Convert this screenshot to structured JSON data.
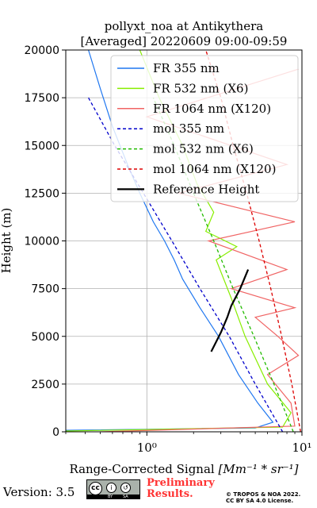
{
  "chart_data": {
    "type": "line",
    "title": "pollyxt_noa at Antikythera",
    "subtitle": "[Averaged] 20220609 09:00-09:59",
    "xlabel_prefix": "Range-Corrected Signal ",
    "xlabel_unit": "[Mm⁻¹ * sr⁻¹]",
    "ylabel": "Height (m)",
    "xscale": "log",
    "xlim": [
      0.3,
      10
    ],
    "ylim": [
      0,
      20000
    ],
    "xticks": [
      {
        "value": 1,
        "label": "10⁰"
      },
      {
        "value": 10,
        "label": "10¹"
      }
    ],
    "yticks": [
      0,
      2500,
      5000,
      7500,
      10000,
      12500,
      15000,
      17500,
      20000
    ],
    "grid": true,
    "legend_position": "top-right",
    "series": [
      {
        "name": "FR 355 nm",
        "color": "#1f77f0",
        "style": "solid",
        "x": [
          0.3,
          5.0,
          6.5,
          5.2,
          3.9,
          2.9,
          2.2,
          1.7,
          1.5,
          1.3,
          1.1,
          0.9,
          0.75,
          0.6,
          0.5,
          0.42
        ],
        "y": [
          80,
          200,
          500,
          1500,
          3000,
          5000,
          6500,
          8000,
          9000,
          10000,
          11000,
          12500,
          14000,
          16000,
          18000,
          20000
        ]
      },
      {
        "name": "FR 532 nm (X6)",
        "color": "#88ee00",
        "style": "solid",
        "x": [
          0.3,
          7.5,
          8.5,
          6.0,
          4.3,
          3.5,
          2.8,
          3.8,
          2.4,
          2.7,
          2.1,
          1.7,
          1.2,
          0.9
        ],
        "y": [
          40,
          250,
          1000,
          2500,
          5000,
          7000,
          9000,
          9700,
          10500,
          11500,
          13000,
          15000,
          17500,
          20000
        ]
      },
      {
        "name": "FR 1064 nm (X120)",
        "color": "#f06464",
        "style": "solid",
        "x": [
          0.5,
          9.0,
          8.5,
          6.0,
          9.5,
          7.0,
          5.0,
          9.0,
          3.5,
          8.0,
          2.5,
          9.0,
          1.6,
          8.0,
          1.0,
          9.5
        ],
        "y": [
          0,
          300,
          1500,
          3000,
          4000,
          5000,
          6000,
          6500,
          7500,
          8500,
          10000,
          11000,
          12500,
          14000,
          16500,
          19000
        ]
      },
      {
        "name": "mol 355 nm",
        "color": "#0000cc",
        "style": "dashed",
        "x": [
          7.5,
          5.0,
          3.4,
          2.2,
          1.45,
          0.95,
          0.62,
          0.42
        ],
        "y": [
          0,
          2500,
          5000,
          7500,
          10000,
          12500,
          15000,
          17500
        ]
      },
      {
        "name": "mol 532 nm (X6)",
        "color": "#22bb00",
        "style": "dashed",
        "x": [
          8.8,
          6.6,
          4.9,
          3.6,
          2.7,
          2.0,
          1.5,
          1.1
        ],
        "y": [
          0,
          2500,
          5000,
          7500,
          10000,
          12500,
          15000,
          17500
        ]
      },
      {
        "name": "mol 1064 nm (X120)",
        "color": "#dd0000",
        "style": "dashed",
        "x": [
          9.8,
          8.6,
          7.4,
          6.3,
          5.3,
          4.4,
          3.6,
          3.0,
          2.4
        ],
        "y": [
          0,
          2500,
          5000,
          7500,
          10000,
          12500,
          15000,
          17500,
          20000
        ]
      },
      {
        "name": "Reference Height",
        "color": "#000000",
        "style": "solid",
        "x": [
          2.6,
          3.0,
          3.3,
          3.5,
          4.0,
          4.5
        ],
        "y": [
          4200,
          5200,
          6000,
          6600,
          7500,
          8500
        ]
      }
    ]
  },
  "footer": {
    "version_label": "Version: 3.5",
    "cc_label": "cc",
    "cc_by": "BY",
    "cc_sa": "SA",
    "preliminary_line1": "Preliminary",
    "preliminary_line2": "Results.",
    "copyright_line1": "© TROPOS & NOA 2022.",
    "copyright_line2": "CC BY SA 4.0 License."
  }
}
